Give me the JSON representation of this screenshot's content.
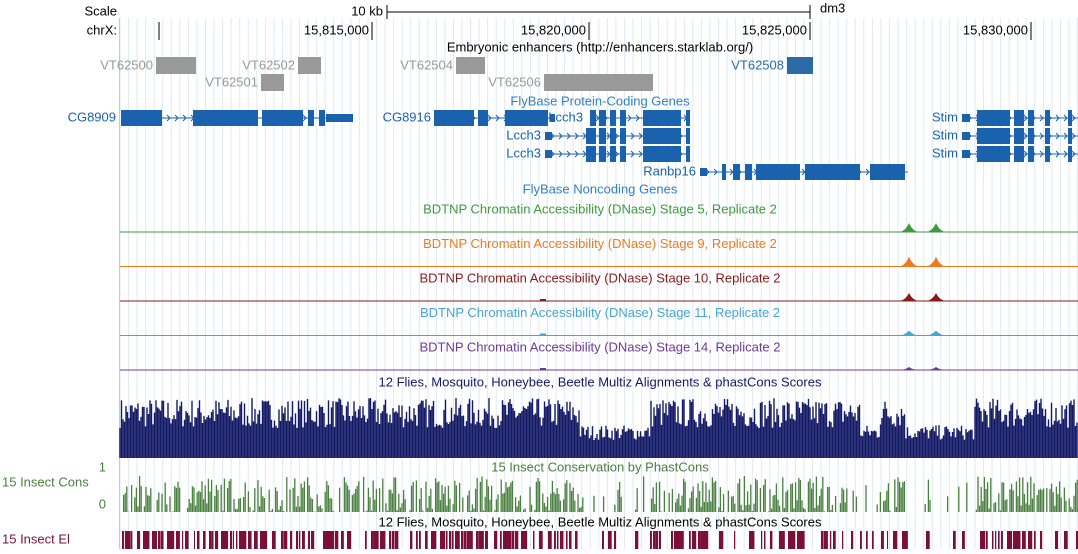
{
  "ruler": {
    "scale_label": "Scale",
    "scale_size": "10 kb",
    "assembly": "dm3",
    "chrom_label": "chrX:",
    "positions": [
      "15,815,000",
      "15,820,000",
      "15,825,000",
      "15,830,000"
    ]
  },
  "enhancers": {
    "title": "Embryonic enhancers (http://enhancers.starklab.org/)",
    "items": [
      "VT62500",
      "VT62502",
      "VT62501",
      "VT62504",
      "VT62506",
      "VT62508"
    ]
  },
  "genes": {
    "title": "FlyBase Protein-Coding Genes",
    "items": [
      "CG8909",
      "CG8916",
      "Lcch3",
      "Lcch3",
      "Lcch3",
      "Ranbp16",
      "Stim",
      "Stim",
      "Stim"
    ]
  },
  "noncoding": {
    "title": "FlyBase Noncoding Genes"
  },
  "dnase": [
    {
      "title": "BDTNP Chromatin Accessibility (DNase) Stage 5, Replicate 2",
      "color": "#3f9a3f"
    },
    {
      "title": "BDTNP Chromatin Accessibility (DNase) Stage 9, Replicate 2",
      "color": "#ef7a1e"
    },
    {
      "title": "BDTNP Chromatin Accessibility (DNase) Stage 10, Replicate 2",
      "color": "#8c1a1a"
    },
    {
      "title": "BDTNP Chromatin Accessibility (DNase) Stage 11, Replicate 2",
      "color": "#45a6d2"
    },
    {
      "title": "BDTNP Chromatin Accessibility (DNase) Stage 14, Replicate 2",
      "color": "#6d3b96"
    }
  ],
  "multiz": {
    "title": "12 Flies, Mosquito, Honeybee, Beetle Multiz Alignments & phastCons Scores",
    "color": "#141a66"
  },
  "phastcons": {
    "title": "15 Insect Conservation by PhastCons",
    "label": "15 Insect Cons",
    "max": "1",
    "min": "0",
    "color": "#4a8040"
  },
  "elements": {
    "title": "12 Flies, Mosquito, Honeybee, Beetle Multiz Alignments & phastCons Scores",
    "label": "15 Insect El",
    "color": "#7a1038"
  }
}
